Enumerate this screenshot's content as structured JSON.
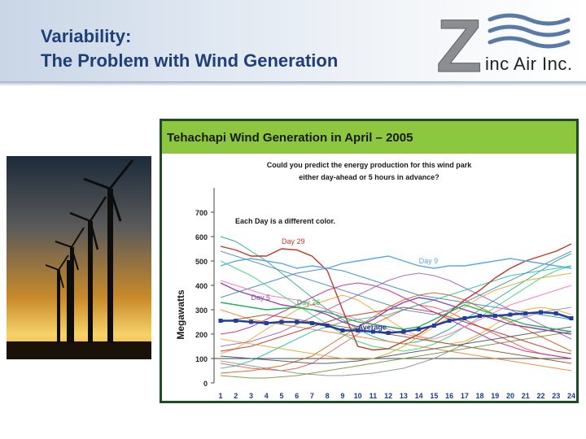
{
  "slide": {
    "title_line1": "Variability:",
    "title_line2": "The Problem with Wind Generation",
    "logo": {
      "letter": "Z",
      "text": "inc Air Inc."
    }
  },
  "chart_data": {
    "type": "line",
    "title": "Tehachapi Wind Generation in April – 2005",
    "subtitle_line1": "Could you predict the energy production for this wind park",
    "subtitle_line2": "either day-ahead or 5 hours in advance?",
    "note": "Each Day is a different color.",
    "ylabel": "Megawatts",
    "xlabel": "",
    "ylim": [
      0,
      800
    ],
    "yticks": [
      0,
      100,
      200,
      300,
      400,
      500,
      600,
      700
    ],
    "x": [
      1,
      2,
      3,
      4,
      5,
      6,
      7,
      8,
      9,
      10,
      11,
      12,
      13,
      14,
      15,
      16,
      17,
      18,
      19,
      20,
      21,
      22,
      23,
      24
    ],
    "grid": false,
    "legend": "none",
    "labeled_series": [
      {
        "name": "Day 29",
        "color": "#c0392b",
        "values": [
          560,
          545,
          520,
          520,
          550,
          545,
          520,
          460,
          300,
          150,
          135,
          140,
          170,
          200,
          240,
          290,
          340,
          380,
          430,
          470,
          500,
          520,
          540,
          570
        ]
      },
      {
        "name": "Day 9",
        "color": "#5aa9e6",
        "values": [
          480,
          500,
          510,
          500,
          490,
          470,
          480,
          470,
          490,
          500,
          510,
          520,
          500,
          480,
          470,
          480,
          480,
          490,
          500,
          510,
          500,
          490,
          480,
          470
        ]
      },
      {
        "name": "Day 5",
        "color": "#8e44ad",
        "values": [
          410,
          380,
          360,
          340,
          320,
          310,
          300,
          280,
          250,
          230,
          260,
          300,
          330,
          350,
          340,
          320,
          300,
          280,
          260,
          240,
          230,
          220,
          210,
          200
        ]
      },
      {
        "name": "Day 26",
        "color": "#27ae60",
        "values": [
          330,
          320,
          310,
          300,
          305,
          310,
          300,
          290,
          270,
          250,
          240,
          230,
          220,
          230,
          260,
          290,
          320,
          300,
          280,
          260,
          240,
          230,
          220,
          210
        ]
      },
      {
        "name": "Average",
        "color": "#1f3f9a",
        "values": [
          255,
          255,
          250,
          245,
          250,
          250,
          245,
          235,
          215,
          215,
          210,
          205,
          210,
          220,
          235,
          255,
          265,
          275,
          275,
          280,
          285,
          290,
          285,
          265
        ]
      }
    ],
    "other_series": [
      {
        "color": "#f39c12",
        "values": [
          120,
          140,
          180,
          220,
          260,
          300,
          320,
          340,
          360,
          340,
          300,
          260,
          220,
          190,
          170,
          160,
          170,
          200,
          240,
          280,
          300,
          310,
          300,
          280
        ]
      },
      {
        "color": "#e74c3c",
        "values": [
          80,
          70,
          60,
          55,
          50,
          60,
          80,
          120,
          160,
          200,
          240,
          270,
          300,
          320,
          310,
          290,
          260,
          230,
          200,
          170,
          140,
          120,
          110,
          100
        ]
      },
      {
        "color": "#16a085",
        "values": [
          600,
          580,
          540,
          500,
          450,
          400,
          350,
          300,
          260,
          220,
          190,
          170,
          160,
          170,
          190,
          220,
          260,
          300,
          340,
          380,
          420,
          460,
          500,
          530
        ]
      },
      {
        "color": "#d35400",
        "values": [
          40,
          45,
          50,
          60,
          70,
          90,
          110,
          150,
          190,
          230,
          270,
          310,
          340,
          360,
          370,
          360,
          340,
          310,
          280,
          250,
          220,
          190,
          160,
          130
        ]
      },
      {
        "color": "#2980b9",
        "values": [
          350,
          370,
          390,
          410,
          430,
          450,
          460,
          470,
          460,
          440,
          420,
          400,
          380,
          360,
          350,
          340,
          330,
          320,
          310,
          300,
          290,
          280,
          270,
          260
        ]
      },
      {
        "color": "#c71585",
        "values": [
          200,
          210,
          230,
          260,
          290,
          320,
          350,
          380,
          400,
          410,
          400,
          380,
          350,
          320,
          290,
          260,
          230,
          200,
          170,
          150,
          130,
          120,
          110,
          100
        ]
      },
      {
        "color": "#7f8c8d",
        "values": [
          90,
          80,
          70,
          60,
          50,
          40,
          35,
          30,
          30,
          35,
          40,
          50,
          60,
          80,
          100,
          130,
          160,
          190,
          220,
          250,
          270,
          290,
          300,
          310
        ]
      },
      {
        "color": "#2ecc71",
        "values": [
          500,
          470,
          440,
          400,
          360,
          320,
          280,
          240,
          200,
          170,
          150,
          140,
          130,
          140,
          160,
          190,
          230,
          270,
          310,
          350,
          390,
          430,
          460,
          480
        ]
      },
      {
        "color": "#9b59b6",
        "values": [
          150,
          160,
          170,
          190,
          210,
          240,
          270,
          300,
          330,
          360,
          390,
          420,
          440,
          450,
          440,
          420,
          390,
          360,
          330,
          300,
          270,
          240,
          210,
          180
        ]
      },
      {
        "color": "#e67e22",
        "values": [
          300,
          280,
          260,
          250,
          240,
          230,
          220,
          210,
          200,
          190,
          180,
          170,
          160,
          150,
          140,
          130,
          120,
          110,
          100,
          90,
          80,
          70,
          60,
          50
        ]
      },
      {
        "color": "#1abc9c",
        "values": [
          60,
          70,
          90,
          120,
          150,
          180,
          210,
          230,
          250,
          260,
          270,
          280,
          300,
          320,
          340,
          360,
          380,
          400,
          420,
          440,
          450,
          460,
          470,
          480
        ]
      },
      {
        "color": "#8b4513",
        "values": [
          250,
          260,
          270,
          280,
          270,
          260,
          250,
          240,
          230,
          220,
          210,
          200,
          190,
          180,
          170,
          160,
          150,
          140,
          130,
          120,
          110,
          100,
          90,
          80
        ]
      },
      {
        "color": "#ff69b4",
        "values": [
          420,
          400,
          380,
          360,
          350,
          340,
          320,
          300,
          280,
          260,
          240,
          220,
          200,
          190,
          180,
          200,
          230,
          260,
          290,
          320,
          340,
          360,
          380,
          400
        ]
      },
      {
        "color": "#34495e",
        "values": [
          110,
          105,
          100,
          95,
          90,
          85,
          80,
          80,
          85,
          90,
          100,
          110,
          120,
          130,
          140,
          150,
          160,
          170,
          180,
          190,
          200,
          210,
          220,
          230
        ]
      },
      {
        "color": "#6b8e23",
        "values": [
          30,
          25,
          20,
          20,
          25,
          30,
          40,
          50,
          60,
          70,
          80,
          90,
          100,
          110,
          120,
          130,
          140,
          150,
          160,
          170,
          180,
          190,
          200,
          210
        ]
      },
      {
        "color": "#b22222",
        "values": [
          130,
          140,
          150,
          170,
          190,
          210,
          230,
          250,
          270,
          280,
          290,
          300,
          310,
          300,
          290,
          270,
          250,
          230,
          210,
          190,
          170,
          150,
          130,
          120
        ]
      },
      {
        "color": "#4682b4",
        "values": [
          540,
          520,
          500,
          480,
          460,
          440,
          420,
          400,
          380,
          360,
          340,
          320,
          300,
          290,
          280,
          300,
          330,
          360,
          390,
          420,
          450,
          480,
          510,
          540
        ]
      },
      {
        "color": "#daa520",
        "values": [
          180,
          170,
          160,
          150,
          140,
          130,
          120,
          110,
          100,
          95,
          100,
          120,
          150,
          190,
          230,
          270,
          310,
          350,
          380,
          400,
          420,
          430,
          440,
          450
        ]
      }
    ]
  }
}
